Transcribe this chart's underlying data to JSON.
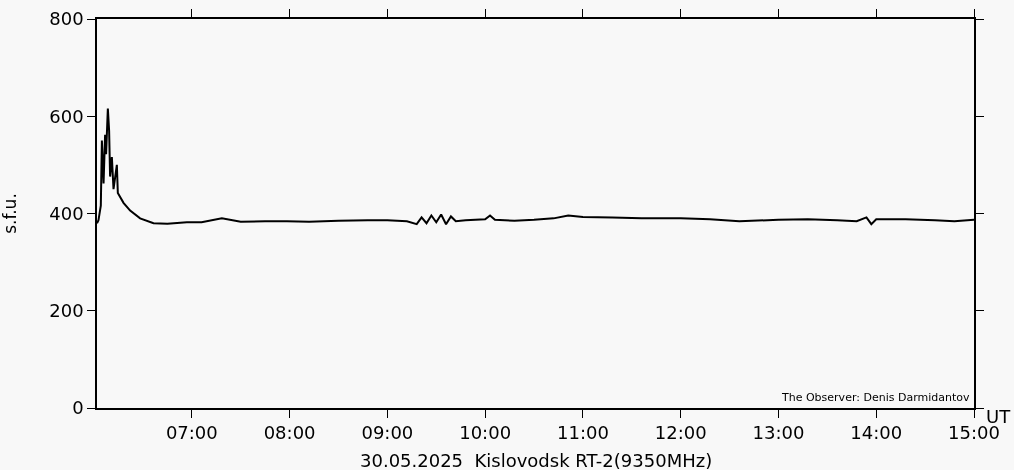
{
  "chart_data": {
    "type": "line",
    "ylabel": "s.f.u.",
    "xlabel": "UT",
    "annotations": [
      "30.05.2025  Kislovodsk RT-2(9350MHz)",
      "The Observer: Denis Darmidantov"
    ],
    "x": [
      6.03,
      6.045,
      6.069,
      6.08,
      6.097,
      6.113,
      6.123,
      6.141,
      6.154,
      6.164,
      6.182,
      6.199,
      6.233,
      6.243,
      6.301,
      6.369,
      6.471,
      6.608,
      6.75,
      6.949,
      7.1,
      7.307,
      7.5,
      7.75,
      7.972,
      8.2,
      8.5,
      8.8,
      9.0,
      9.2,
      9.3,
      9.35,
      9.4,
      9.45,
      9.5,
      9.55,
      9.6,
      9.65,
      9.7,
      9.8,
      10.0,
      10.05,
      10.1,
      10.3,
      10.5,
      10.7,
      10.85,
      11.0,
      11.3,
      11.6,
      12.0,
      12.3,
      12.6,
      13.0,
      13.3,
      13.6,
      13.8,
      13.9,
      13.95,
      14.0,
      14.3,
      14.6,
      14.8,
      15.0
    ],
    "series": [
      {
        "color": "#000000",
        "values": [
          380,
          386,
          416,
          550,
          462,
          562,
          522,
          616,
          570,
          476,
          516,
          450,
          500,
          442,
          422,
          406,
          390,
          380,
          379,
          382,
          382,
          390,
          383,
          384,
          384,
          383,
          385,
          386,
          386,
          384,
          378,
          392,
          380,
          396,
          382,
          398,
          378,
          394,
          384,
          386,
          388,
          396,
          387,
          385,
          387,
          390,
          396,
          393,
          392,
          390,
          390,
          388,
          384,
          387,
          388,
          386,
          384,
          392,
          378,
          388,
          388,
          386,
          384,
          387
        ]
      }
    ],
    "xlim": [
      6.03,
      15.0
    ],
    "xticks": [
      {
        "value": 7,
        "label": "07:00"
      },
      {
        "value": 8,
        "label": "08:00"
      },
      {
        "value": 9,
        "label": "09:00"
      },
      {
        "value": 10,
        "label": "10:00"
      },
      {
        "value": 11,
        "label": "11:00"
      },
      {
        "value": 12,
        "label": "12:00"
      },
      {
        "value": 13,
        "label": "13:00"
      },
      {
        "value": 14,
        "label": "14:00"
      },
      {
        "value": 15,
        "label": "15:00"
      }
    ],
    "ylim": [
      0,
      800
    ],
    "yticks": [
      0,
      200,
      400,
      600,
      800
    ],
    "grid": false,
    "legend": false,
    "marker": "none",
    "line_style": "solid"
  }
}
